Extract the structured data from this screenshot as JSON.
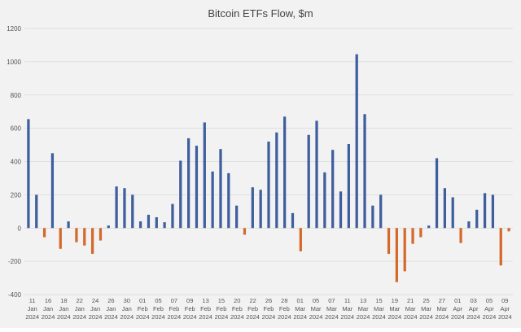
{
  "chart_data": {
    "type": "bar",
    "title": "Bitcoin ETFs Flow, $m",
    "xlabel": "",
    "ylabel": "",
    "ylim": [
      -400,
      1200
    ],
    "yticks": [
      -400,
      -200,
      0,
      200,
      400,
      600,
      800,
      1000,
      1200
    ],
    "legend": "none",
    "grid": true,
    "colors": {
      "positive": "#3e5e9e",
      "negative": "#d4692a",
      "background": "#f2f2f2",
      "gridline": "#d9d9d9"
    },
    "x_tick_labels": [
      [
        "11",
        "Jan",
        "2024"
      ],
      [
        "16",
        "Jan",
        "2024"
      ],
      [
        "18",
        "Jan",
        "2024"
      ],
      [
        "22",
        "Jan",
        "2024"
      ],
      [
        "24",
        "Jan",
        "2024"
      ],
      [
        "26",
        "Jan",
        "2024"
      ],
      [
        "30",
        "Jan",
        "2024"
      ],
      [
        "01",
        "Feb",
        "2024"
      ],
      [
        "05",
        "Feb",
        "2024"
      ],
      [
        "07",
        "Feb",
        "2024"
      ],
      [
        "09",
        "Feb",
        "2024"
      ],
      [
        "13",
        "Feb",
        "2024"
      ],
      [
        "15",
        "Feb",
        "2024"
      ],
      [
        "20",
        "Feb",
        "2024"
      ],
      [
        "22",
        "Feb",
        "2024"
      ],
      [
        "26",
        "Feb",
        "2024"
      ],
      [
        "28",
        "Feb",
        "2024"
      ],
      [
        "01",
        "Mar",
        "2024"
      ],
      [
        "05",
        "Mar",
        "2024"
      ],
      [
        "07",
        "Mar",
        "2024"
      ],
      [
        "11",
        "Mar",
        "2024"
      ],
      [
        "13",
        "Mar",
        "2024"
      ],
      [
        "15",
        "Mar",
        "2024"
      ],
      [
        "19",
        "Mar",
        "2024"
      ],
      [
        "21",
        "Mar",
        "2024"
      ],
      [
        "25",
        "Mar",
        "2024"
      ],
      [
        "27",
        "Mar",
        "2024"
      ],
      [
        "01",
        "Apr",
        "2024"
      ],
      [
        "03",
        "Apr",
        "2024"
      ],
      [
        "05",
        "Apr",
        "2024"
      ],
      [
        "09",
        "Apr",
        "2024"
      ]
    ],
    "values": [
      655,
      200,
      -55,
      450,
      -125,
      40,
      -85,
      -105,
      -155,
      -75,
      15,
      250,
      240,
      200,
      40,
      80,
      65,
      35,
      145,
      405,
      540,
      495,
      635,
      340,
      475,
      330,
      135,
      -40,
      245,
      230,
      520,
      575,
      670,
      90,
      -140,
      560,
      645,
      335,
      470,
      220,
      505,
      1045,
      685,
      135,
      200,
      -155,
      -325,
      -260,
      -95,
      -55,
      15,
      420,
      240,
      185,
      -90,
      40,
      110,
      210,
      200,
      -225,
      -20
    ]
  }
}
